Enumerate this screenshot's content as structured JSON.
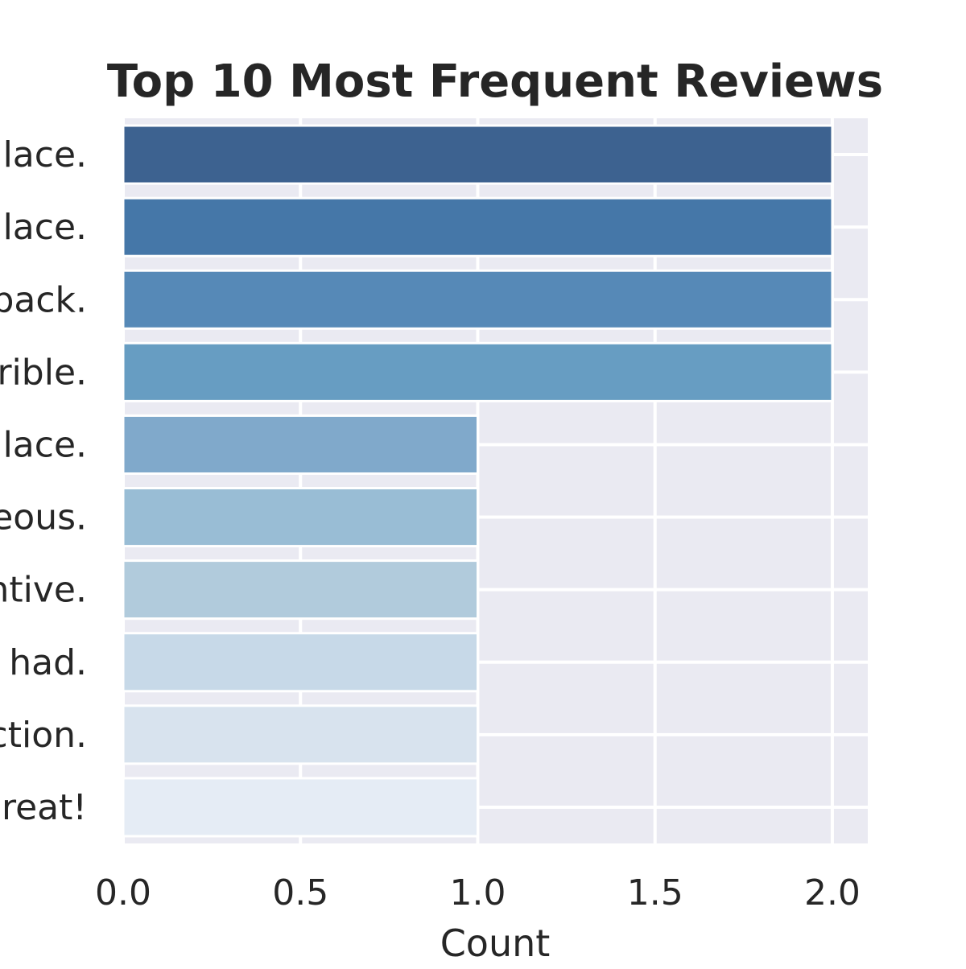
{
  "chart_data": {
    "type": "bar",
    "orientation": "horizontal",
    "title": "Top 10 Most Frequent Reviews",
    "xlabel": "Count",
    "ylabel": "",
    "categories": [
      "lace.",
      "lace.",
      "back.",
      "rible.",
      "lace.",
      "eous.",
      "ntive.",
      "had.",
      "ction.",
      "reat!"
    ],
    "values": [
      2,
      2,
      2,
      2,
      1,
      1,
      1,
      1,
      1,
      1
    ],
    "xlim": [
      0,
      2.1
    ],
    "xticks": [
      "0.0",
      "0.5",
      "1.0",
      "1.5",
      "2.0"
    ],
    "grid": true,
    "colors": [
      "#3d6290",
      "#4577a8",
      "#5689b7",
      "#679dc2",
      "#80a9cb",
      "#99bdd5",
      "#b1cbdc",
      "#c7d9e8",
      "#d8e3ee",
      "#e5ecf5"
    ],
    "plot_background": "#eaeaf2"
  }
}
